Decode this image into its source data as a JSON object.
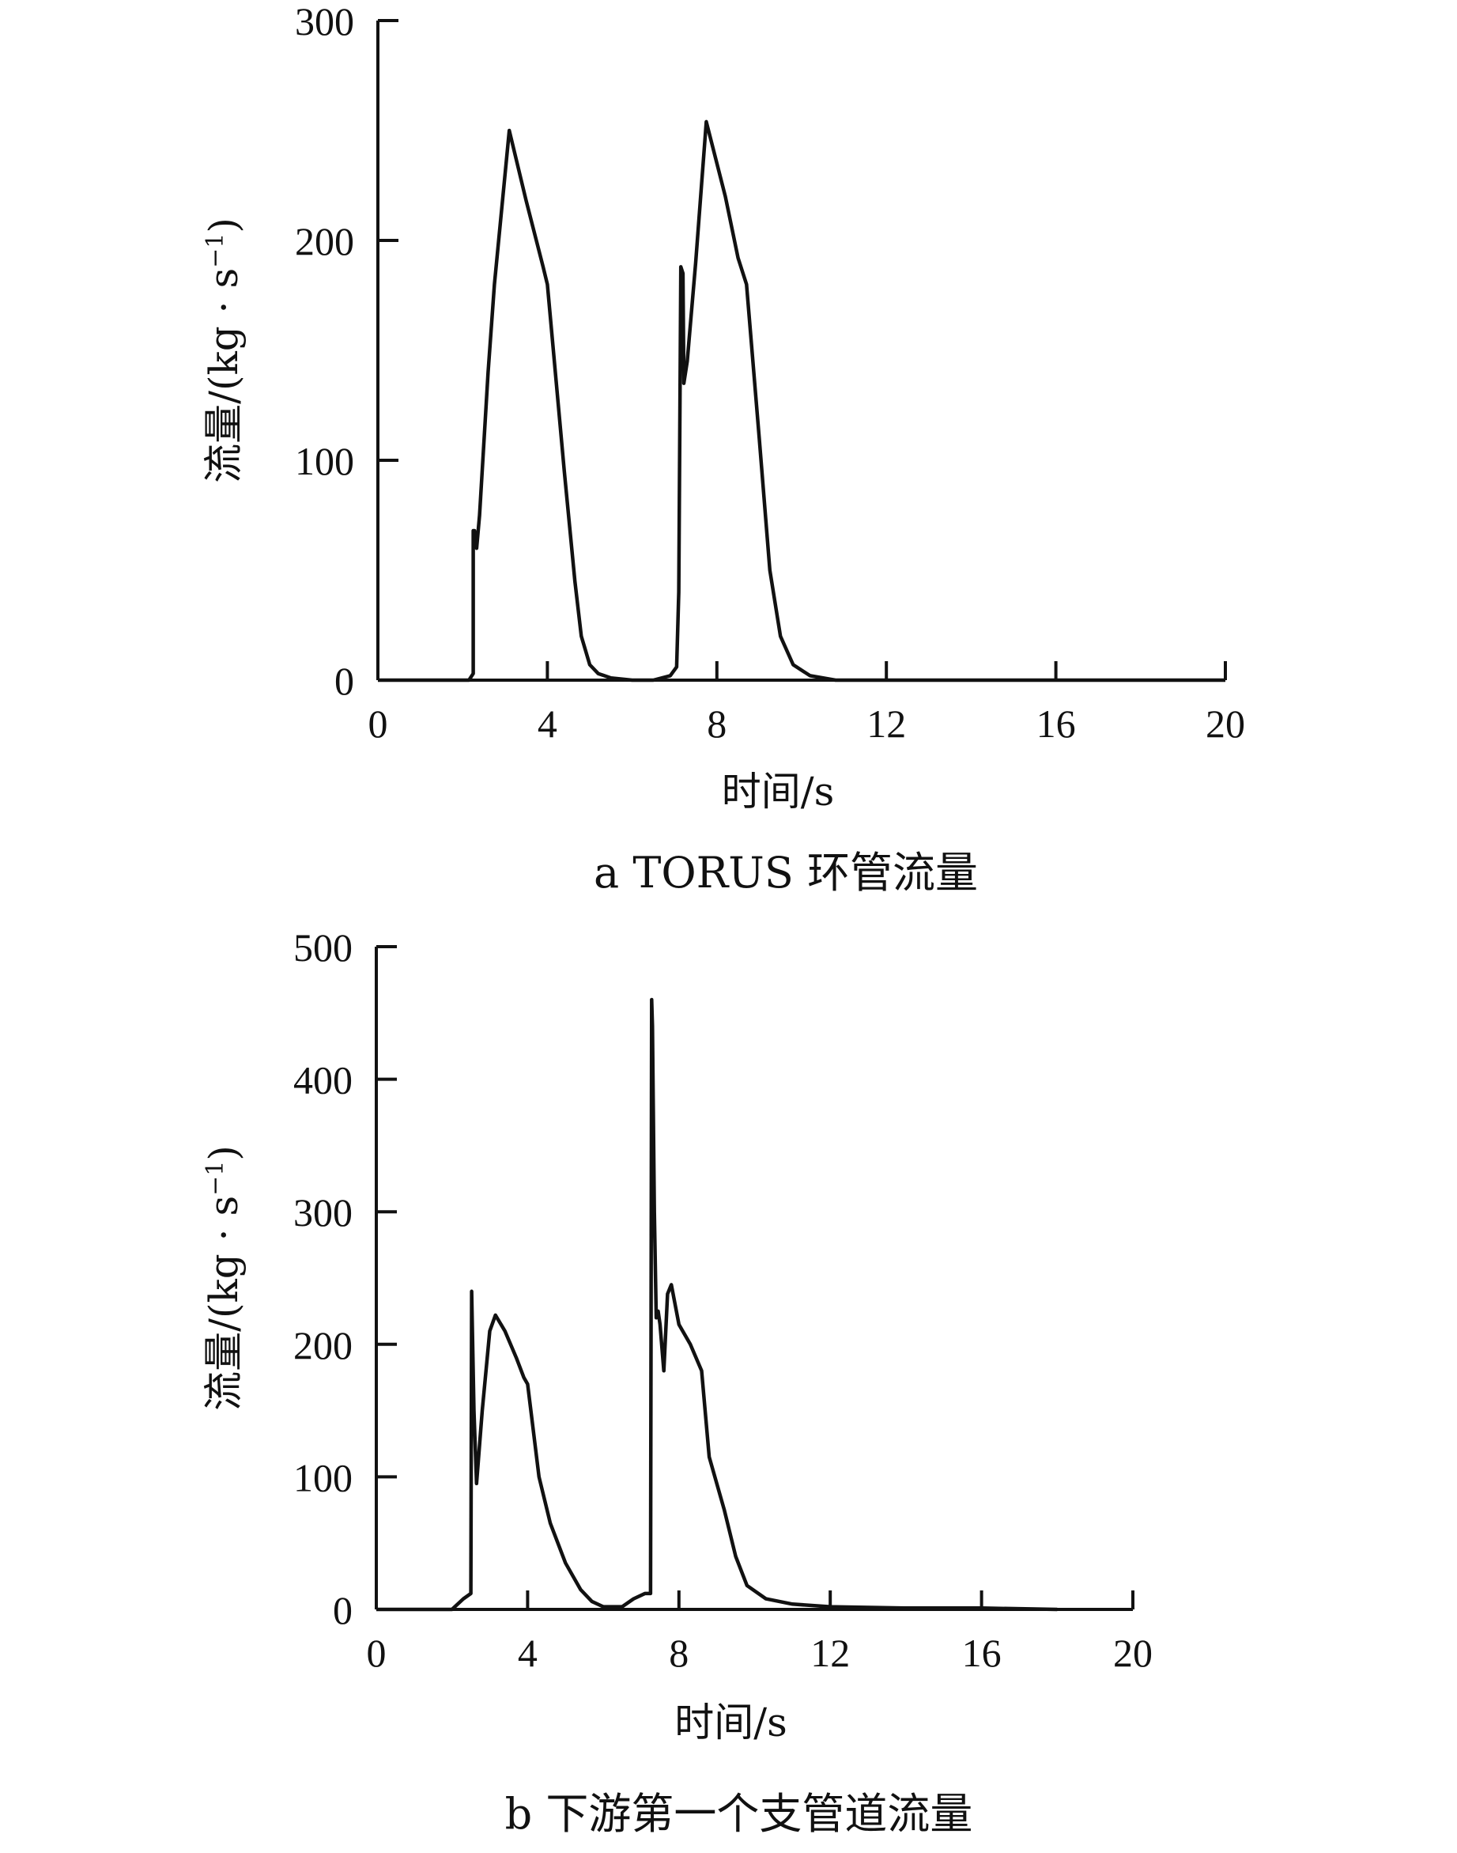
{
  "chart_data": [
    {
      "type": "line",
      "caption": "a  TORUS 环管流量",
      "xlabel": "时间/s",
      "ylabel": "流量/(kg · s",
      "ylabel_sup": "−1",
      "ylabel_close": ")",
      "xlim": [
        0,
        20
      ],
      "ylim": [
        0,
        300
      ],
      "xticks": [
        0,
        4,
        8,
        12,
        16,
        20
      ],
      "yticks": [
        0,
        100,
        200,
        300
      ],
      "grid": false,
      "series": [
        {
          "color": "#111111",
          "x": [
            0,
            2.15,
            2.25,
            2.25,
            2.28,
            2.33,
            2.4,
            2.6,
            2.75,
            3.1,
            3.5,
            3.9,
            4.0,
            4.4,
            4.65,
            4.8,
            5.0,
            5.2,
            5.5,
            6.0,
            6.5,
            6.9,
            7.05,
            7.1,
            7.15,
            7.2,
            7.22,
            7.3,
            7.5,
            7.75,
            8.2,
            8.5,
            8.7,
            9.0,
            9.25,
            9.5,
            9.8,
            10.2,
            10.8,
            12,
            16,
            20
          ],
          "y": [
            0,
            0,
            3,
            68,
            68,
            60,
            75,
            140,
            180,
            250,
            218,
            188,
            180,
            95,
            45,
            20,
            7,
            3,
            1,
            0,
            0,
            2,
            6,
            40,
            188,
            185,
            135,
            145,
            190,
            254,
            220,
            192,
            180,
            110,
            50,
            20,
            7,
            2,
            0,
            0,
            0,
            0
          ]
        }
      ]
    },
    {
      "type": "line",
      "caption": "b  下游第一个支管道流量",
      "xlabel": "时间/s",
      "ylabel": "流量/(kg · s",
      "ylabel_sup": "−1",
      "ylabel_close": ")",
      "xlim": [
        0,
        20
      ],
      "ylim": [
        0,
        500
      ],
      "xticks": [
        0,
        4,
        8,
        12,
        16,
        20
      ],
      "yticks": [
        0,
        100,
        200,
        300,
        400,
        500
      ],
      "grid": false,
      "series": [
        {
          "color": "#111111",
          "x": [
            0,
            2.0,
            2.3,
            2.5,
            2.52,
            2.58,
            2.65,
            2.8,
            3.0,
            3.15,
            3.4,
            3.7,
            3.9,
            4.0,
            4.3,
            4.6,
            5.0,
            5.4,
            5.7,
            6.0,
            6.5,
            6.8,
            7.1,
            7.25,
            7.28,
            7.3,
            7.35,
            7.4,
            7.45,
            7.5,
            7.6,
            7.7,
            7.8,
            8.0,
            8.3,
            8.6,
            8.8,
            9.2,
            9.5,
            9.8,
            10.3,
            11,
            12,
            14,
            16,
            18
          ],
          "y": [
            0,
            0,
            8,
            12,
            240,
            150,
            95,
            150,
            210,
            222,
            210,
            190,
            175,
            170,
            100,
            65,
            35,
            15,
            6,
            2,
            2,
            8,
            12,
            12,
            460,
            440,
            300,
            220,
            225,
            215,
            180,
            238,
            245,
            215,
            200,
            180,
            115,
            75,
            40,
            18,
            8,
            4,
            2,
            1,
            1,
            0
          ]
        }
      ]
    }
  ]
}
